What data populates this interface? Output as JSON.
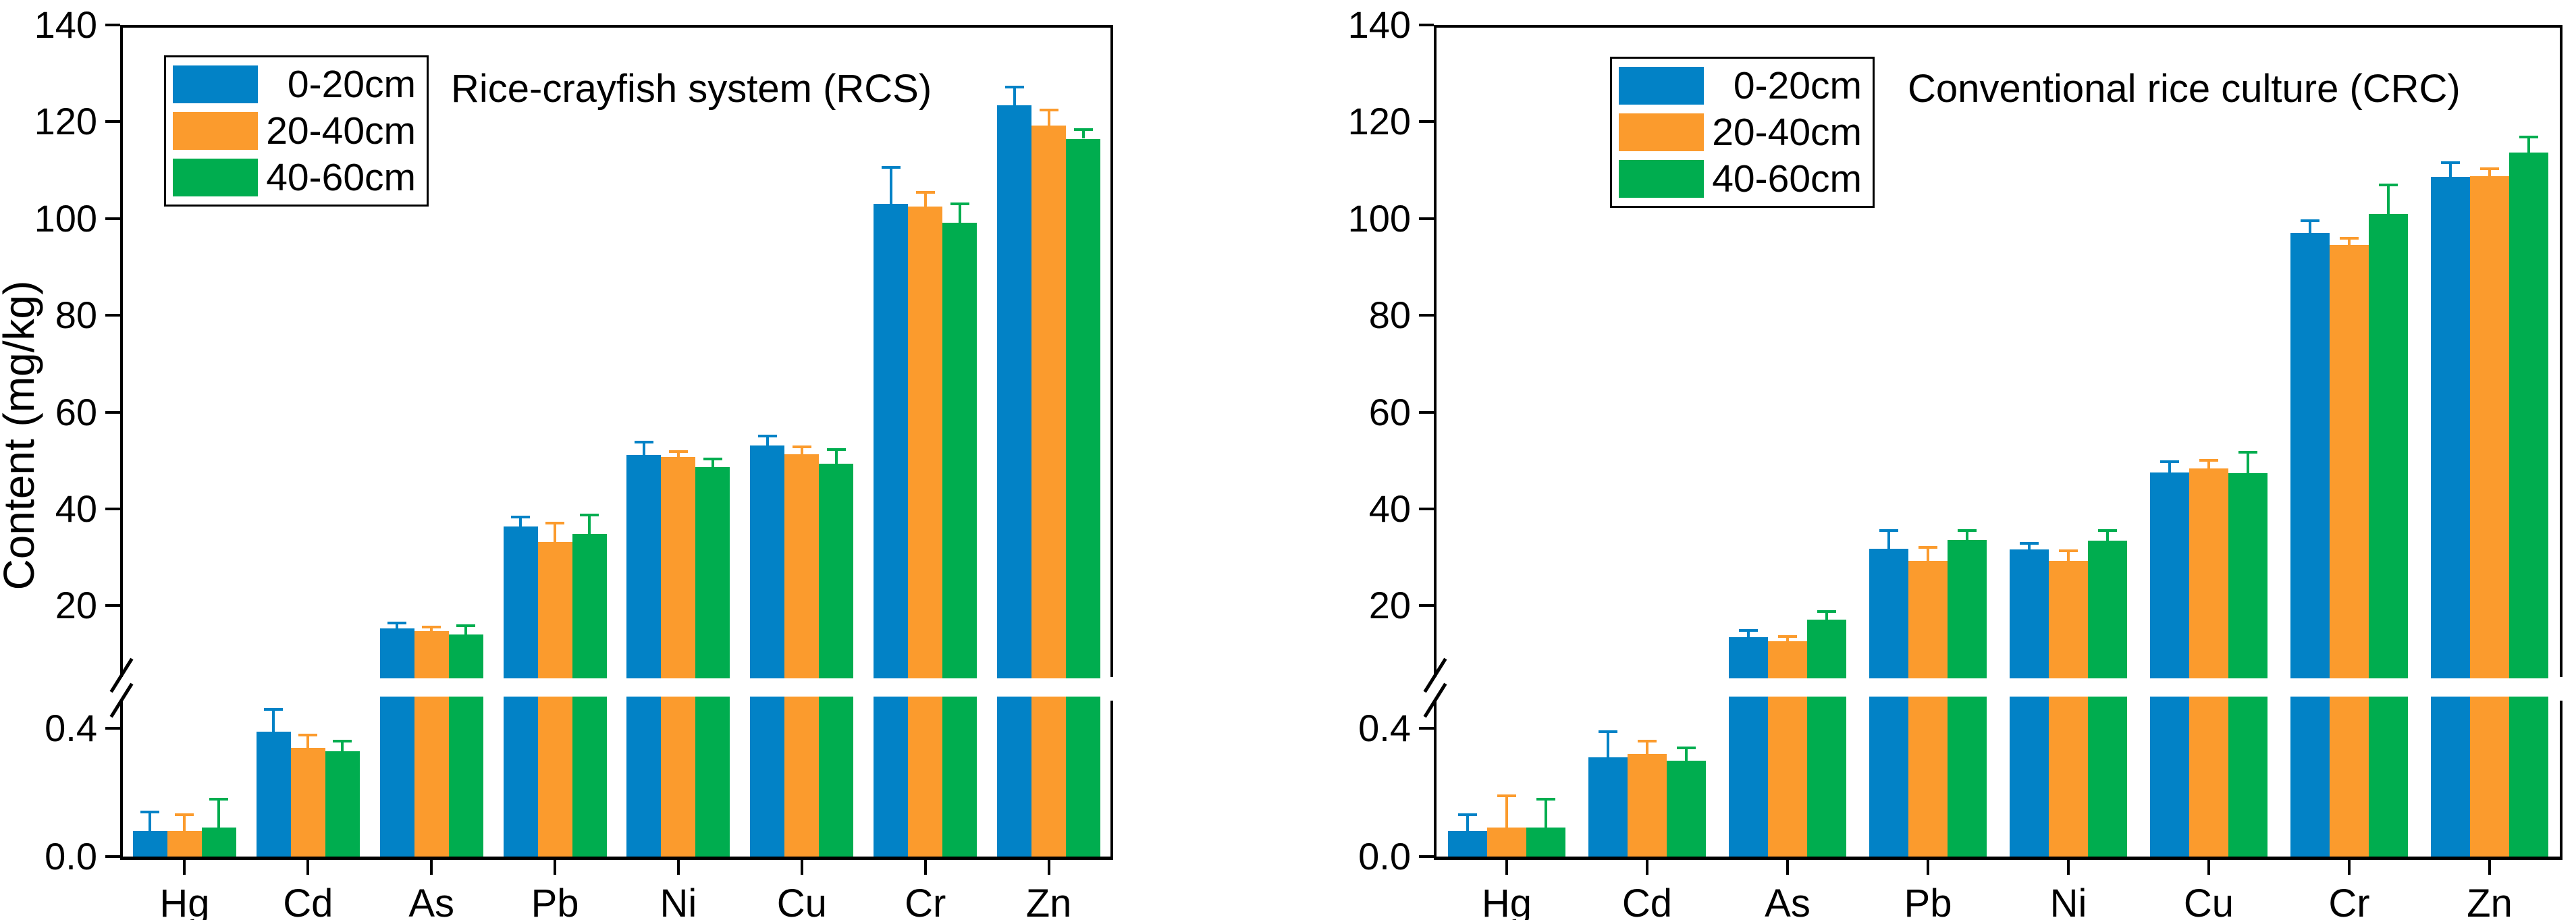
{
  "figure": {
    "ylabel": "Content (mg/kg)",
    "background": "#ffffff",
    "frame_color": "#000000",
    "y_axis": {
      "upper_range": [
        5,
        140
      ],
      "lower_range": [
        0,
        0.5
      ],
      "grid": "off",
      "axis_break": true,
      "upper_ticks": [
        {
          "v": 20,
          "label": "20"
        },
        {
          "v": 40,
          "label": "40"
        },
        {
          "v": 60,
          "label": "60"
        },
        {
          "v": 80,
          "label": "80"
        },
        {
          "v": 100,
          "label": "100"
        },
        {
          "v": 120,
          "label": "120"
        },
        {
          "v": 140,
          "label": "140"
        }
      ],
      "lower_ticks": [
        {
          "v": 0.0,
          "label": "0.0"
        },
        {
          "v": 0.4,
          "label": "0.4"
        }
      ]
    },
    "legend": {
      "position": "top-left-inside",
      "labels": [
        "0-20cm",
        "20-40cm",
        "40-60cm"
      ]
    },
    "series_colors": {
      "blue": "#0282C6",
      "orange": "#FB9B2D",
      "green": "#00AD4F"
    }
  },
  "chart_data": [
    {
      "type": "bar",
      "title": "Rice-crayfish system (RCS)",
      "xlabel": "",
      "ylabel": "Content (mg/kg)",
      "categories": [
        "Hg",
        "Cd",
        "As",
        "Pb",
        "Ni",
        "Cu",
        "Cr",
        "Zn"
      ],
      "series": [
        {
          "name": "0-20cm",
          "color": "#0282C6",
          "values": [
            0.08,
            0.39,
            15.3,
            36.4,
            51.2,
            53.1,
            103.0,
            123.4
          ],
          "errors": [
            0.06,
            0.07,
            1.2,
            2.0,
            2.6,
            1.9,
            7.6,
            3.8
          ]
        },
        {
          "name": "20-40cm",
          "color": "#FB9B2D",
          "values": [
            0.08,
            0.34,
            14.7,
            33.2,
            50.7,
            51.3,
            102.5,
            119.2
          ],
          "errors": [
            0.05,
            0.04,
            0.9,
            3.9,
            1.2,
            1.5,
            2.9,
            3.2
          ]
        },
        {
          "name": "40-60cm",
          "color": "#00AD4F",
          "values": [
            0.09,
            0.33,
            14.1,
            34.8,
            48.7,
            49.3,
            99.1,
            116.5
          ],
          "errors": [
            0.09,
            0.03,
            1.8,
            3.9,
            1.6,
            3.0,
            4.0,
            1.9
          ]
        }
      ]
    },
    {
      "type": "bar",
      "title": "Conventional rice culture (CRC)",
      "xlabel": "",
      "ylabel": "Content (mg/kg)",
      "categories": [
        "Hg",
        "Cd",
        "As",
        "Pb",
        "Ni",
        "Cu",
        "Cr",
        "Zn"
      ],
      "series": [
        {
          "name": "0-20cm",
          "color": "#0282C6",
          "values": [
            0.08,
            0.31,
            13.5,
            31.8,
            31.6,
            47.6,
            97.0,
            108.6
          ],
          "errors": [
            0.05,
            0.08,
            1.4,
            3.8,
            1.3,
            2.2,
            2.5,
            2.9
          ]
        },
        {
          "name": "20-40cm",
          "color": "#FB9B2D",
          "values": [
            0.09,
            0.32,
            12.7,
            29.2,
            29.3,
            48.4,
            94.6,
            108.7
          ],
          "errors": [
            0.1,
            0.04,
            1.0,
            2.8,
            2.1,
            1.6,
            1.3,
            1.6
          ]
        },
        {
          "name": "40-60cm",
          "color": "#00AD4F",
          "values": [
            0.09,
            0.3,
            17.1,
            33.6,
            33.4,
            47.4,
            100.9,
            113.7
          ],
          "errors": [
            0.09,
            0.04,
            1.7,
            1.9,
            2.1,
            4.3,
            6.0,
            3.1
          ]
        }
      ]
    }
  ]
}
